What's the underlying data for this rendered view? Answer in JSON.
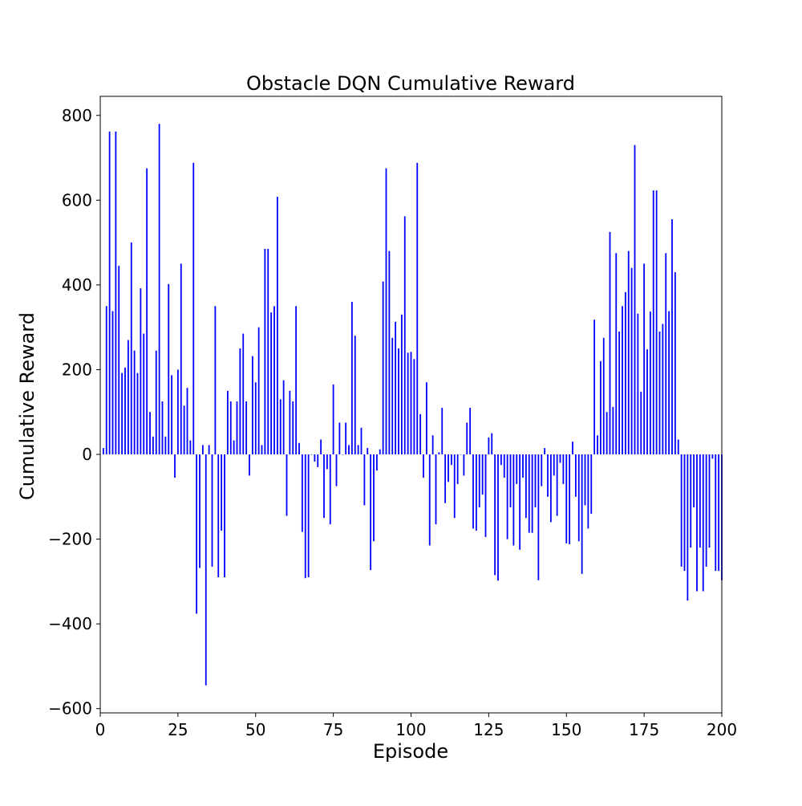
{
  "chart_data": {
    "type": "bar",
    "title": "Obstacle DQN Cumulative Reward",
    "xlabel": "Episode",
    "ylabel": "Cumulative Reward",
    "xlim": [
      0,
      200
    ],
    "ylim": [
      -610,
      845
    ],
    "xticks": [
      0,
      25,
      50,
      75,
      100,
      125,
      150,
      175,
      200
    ],
    "yticks": [
      -600,
      -400,
      -200,
      0,
      200,
      400,
      600,
      800
    ],
    "ytick_labels": [
      "−600",
      "−400",
      "−200",
      "0",
      "200",
      "400",
      "600",
      "800"
    ],
    "grid": false,
    "bar_color": "#0000ff",
    "series": [
      {
        "x": [
          1,
          2,
          3,
          4,
          5,
          6,
          7,
          8,
          9,
          10,
          11,
          12,
          13,
          14,
          15,
          16,
          17,
          18,
          19,
          20,
          21,
          22,
          23,
          24,
          25,
          26,
          27,
          28,
          29,
          30,
          31,
          32,
          33,
          34,
          35,
          36,
          37,
          38,
          39,
          40,
          41,
          42,
          43,
          44,
          45,
          46,
          47,
          48,
          49,
          50,
          51,
          52,
          53,
          54,
          55,
          56,
          57,
          58,
          59,
          60,
          61,
          62,
          63,
          64,
          65,
          66,
          67,
          68,
          69,
          70,
          71,
          72,
          73,
          74,
          75,
          76,
          77,
          78,
          79,
          80,
          81,
          82,
          83,
          84,
          85,
          86,
          87,
          88,
          89,
          90,
          91,
          92,
          93,
          94,
          95,
          96,
          97,
          98,
          99,
          100,
          101,
          102,
          103,
          104,
          105,
          106,
          107,
          108,
          109,
          110,
          111,
          112,
          113,
          114,
          115,
          116,
          117,
          118,
          119,
          120,
          121,
          122,
          123,
          124,
          125,
          126,
          127,
          128,
          129,
          130,
          131,
          132,
          133,
          134,
          135,
          136,
          137,
          138,
          139,
          140,
          141,
          142,
          143,
          144,
          145,
          146,
          147,
          148,
          149,
          150,
          151,
          152,
          153,
          154,
          155,
          156,
          157,
          158,
          159,
          160,
          161,
          162,
          163,
          164,
          165,
          166,
          167,
          168,
          169,
          170,
          171,
          172,
          173,
          174,
          175,
          176,
          177,
          178,
          179,
          180,
          181,
          182,
          183,
          184,
          185,
          186,
          187,
          188,
          189,
          190,
          191,
          192,
          193,
          194,
          195,
          196,
          197,
          198,
          199,
          200
        ],
        "values": [
          15,
          350,
          762,
          338,
          762,
          445,
          192,
          205,
          270,
          500,
          245,
          192,
          392,
          285,
          675,
          100,
          42,
          245,
          780,
          125,
          42,
          402,
          187,
          -55,
          200,
          450,
          115,
          157,
          33,
          688,
          -376,
          -268,
          22,
          -545,
          22,
          -265,
          350,
          -290,
          -180,
          -290,
          150,
          125,
          33,
          125,
          250,
          285,
          125,
          -50,
          232,
          170,
          300,
          22,
          485,
          485,
          335,
          350,
          608,
          130,
          175,
          -145,
          150,
          125,
          350,
          27,
          -183,
          -292,
          -290,
          0,
          -17,
          -30,
          35,
          -150,
          -35,
          -165,
          165,
          -75,
          75,
          0,
          75,
          22,
          360,
          280,
          22,
          63,
          -120,
          15,
          -273,
          -205,
          -38,
          12,
          408,
          675,
          480,
          275,
          313,
          250,
          330,
          562,
          240,
          242,
          225,
          688,
          95,
          -55,
          170,
          -215,
          45,
          -165,
          5,
          110,
          -115,
          -65,
          -25,
          -150,
          -70,
          0,
          -50,
          75,
          110,
          -175,
          -180,
          -125,
          -95,
          -195,
          40,
          50,
          -285,
          -298,
          -25,
          -55,
          -200,
          -125,
          -215,
          -70,
          -225,
          -55,
          -150,
          -185,
          -185,
          -125,
          -297,
          -75,
          15,
          -100,
          -160,
          -50,
          -145,
          -20,
          -70,
          -210,
          -212,
          30,
          -100,
          -205,
          -282,
          -120,
          -175,
          -140,
          318,
          45,
          220,
          275,
          100,
          525,
          112,
          475,
          290,
          350,
          383,
          480,
          440,
          730,
          332,
          148,
          450,
          248,
          337,
          623,
          623,
          290,
          308,
          475,
          338,
          555,
          430,
          35,
          -265,
          -275,
          -345,
          -220,
          -125,
          -323,
          -220,
          -323,
          -265,
          -220,
          -10,
          -275,
          -275,
          -297
        ]
      }
    ]
  }
}
